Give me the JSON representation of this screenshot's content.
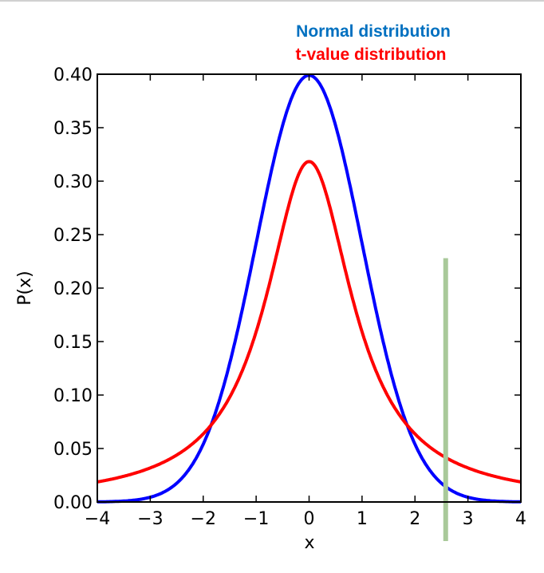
{
  "chart_data": {
    "type": "line",
    "title": "",
    "xlabel": "x",
    "ylabel": "P(x)",
    "xlim": [
      -4,
      4
    ],
    "ylim": [
      0,
      0.4
    ],
    "xticks": [
      "−4",
      "−3",
      "−2",
      "−1",
      "0",
      "1",
      "2",
      "3",
      "4"
    ],
    "xtick_values": [
      -4,
      -3,
      -2,
      -1,
      0,
      1,
      2,
      3,
      4
    ],
    "yticks": [
      "0.00",
      "0.05",
      "0.10",
      "0.15",
      "0.20",
      "0.25",
      "0.30",
      "0.35",
      "0.40"
    ],
    "ytick_values": [
      0,
      0.05,
      0.1,
      0.15,
      0.2,
      0.25,
      0.3,
      0.35,
      0.4
    ],
    "grid": false,
    "legend_placement": "top-center",
    "series": [
      {
        "name": "Normal distribution",
        "color": "#0000ff",
        "label_color": "#0070c0",
        "function": "standard normal pdf",
        "peak": 0.399
      },
      {
        "name": "t-value distribution",
        "color": "#ff0000",
        "label_color": "#ff0000",
        "function": "Student t pdf, 1 degree of freedom",
        "peak": 0.318
      }
    ],
    "marker_line": {
      "x": 2.58,
      "y_top": 0.228,
      "color": "#a9c99a"
    }
  }
}
